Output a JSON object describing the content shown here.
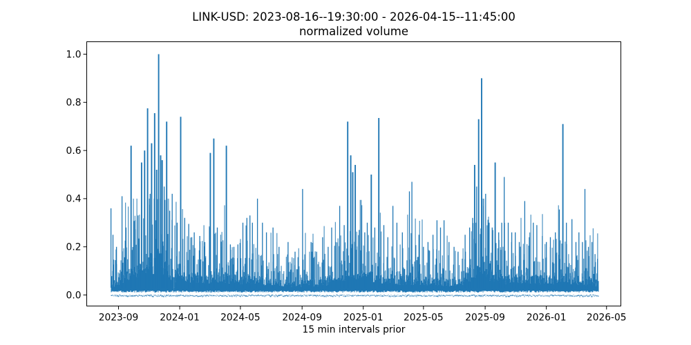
{
  "figure": {
    "title_line1": "LINK-USD: 2023-08-16--19:30:00 - 2026-04-15--11:45:00",
    "title_line2": "normalized volume",
    "xlabel": "15 min intervals prior",
    "background_color": "#ffffff",
    "text_color": "#000000"
  },
  "chart_data": {
    "type": "line",
    "title": "LINK-USD: 2023-08-16--19:30:00 - 2026-04-15--11:45:00",
    "subtitle": "normalized volume",
    "xlabel": "15 min intervals prior",
    "ylabel": "",
    "grid": false,
    "legend": null,
    "series_color": "#1f77b4",
    "x_start": "2023-08-16T19:30:00",
    "x_end": "2026-04-15T11:45:00",
    "x_tick_labels": [
      "2023-09",
      "2024-01",
      "2024-05",
      "2024-09",
      "2025-01",
      "2025-05",
      "2025-09",
      "2026-01",
      "2026-05"
    ],
    "y_ticks": [
      0.0,
      0.2,
      0.4,
      0.6,
      0.8,
      1.0
    ],
    "y_tick_labels": [
      "0.0",
      "0.2",
      "0.4",
      "0.6",
      "0.8",
      "1.0"
    ],
    "ylim": [
      0,
      1
    ],
    "axes_margin_fraction": 0.05,
    "description": "Dense 15-minute normalized trading volume; near-zero baseline band with frequent spikes. Major spikes listed as [date, normalized volume]; baseline_envelope gives typical top of the dense low-volume band.",
    "major_spikes": [
      [
        "2023-08-17",
        0.36
      ],
      [
        "2023-08-21",
        0.25
      ],
      [
        "2023-08-28",
        0.2
      ],
      [
        "2023-09-08",
        0.41
      ],
      [
        "2023-09-16",
        0.28
      ],
      [
        "2023-09-26",
        0.62
      ],
      [
        "2023-10-04",
        0.31
      ],
      [
        "2023-10-10",
        0.33
      ],
      [
        "2023-10-17",
        0.55
      ],
      [
        "2023-10-23",
        0.6
      ],
      [
        "2023-10-29",
        0.775
      ],
      [
        "2023-11-03",
        0.42
      ],
      [
        "2023-11-06",
        0.63
      ],
      [
        "2023-11-12",
        0.755
      ],
      [
        "2023-11-16",
        0.52
      ],
      [
        "2023-11-20",
        1.0
      ],
      [
        "2023-11-24",
        0.58
      ],
      [
        "2023-11-27",
        0.56
      ],
      [
        "2023-12-01",
        0.45
      ],
      [
        "2023-12-06",
        0.72
      ],
      [
        "2023-12-12",
        0.35
      ],
      [
        "2023-12-17",
        0.42
      ],
      [
        "2023-12-27",
        0.3
      ],
      [
        "2024-01-03",
        0.74
      ],
      [
        "2024-01-11",
        0.32
      ],
      [
        "2024-01-19",
        0.295
      ],
      [
        "2024-01-25",
        0.24
      ],
      [
        "2024-01-30",
        0.26
      ],
      [
        "2024-02-10",
        0.245
      ],
      [
        "2024-02-20",
        0.22
      ],
      [
        "2024-03-02",
        0.59
      ],
      [
        "2024-03-09",
        0.65
      ],
      [
        "2024-03-16",
        0.28
      ],
      [
        "2024-03-24",
        0.2
      ],
      [
        "2024-04-03",
        0.62
      ],
      [
        "2024-04-11",
        0.21
      ],
      [
        "2024-04-18",
        0.2
      ],
      [
        "2024-04-26",
        0.21
      ],
      [
        "2024-05-06",
        0.3
      ],
      [
        "2024-05-14",
        0.32
      ],
      [
        "2024-05-20",
        0.33
      ],
      [
        "2024-05-25",
        0.3
      ],
      [
        "2024-06-04",
        0.4
      ],
      [
        "2024-06-14",
        0.3
      ],
      [
        "2024-06-22",
        0.26
      ],
      [
        "2024-07-05",
        0.28
      ],
      [
        "2024-07-17",
        0.2
      ],
      [
        "2024-08-04",
        0.22
      ],
      [
        "2024-08-18",
        0.18
      ],
      [
        "2024-09-02",
        0.44
      ],
      [
        "2024-09-19",
        0.22
      ],
      [
        "2024-09-30",
        0.18
      ],
      [
        "2024-10-12",
        0.24
      ],
      [
        "2024-10-23",
        0.2
      ],
      [
        "2024-10-30",
        0.28
      ],
      [
        "2024-11-07",
        0.22
      ],
      [
        "2024-11-15",
        0.37
      ],
      [
        "2024-11-24",
        0.29
      ],
      [
        "2024-12-01",
        0.72
      ],
      [
        "2024-12-07",
        0.58
      ],
      [
        "2024-12-11",
        0.51
      ],
      [
        "2024-12-16",
        0.54
      ],
      [
        "2024-12-24",
        0.27
      ],
      [
        "2025-01-04",
        0.26
      ],
      [
        "2025-01-09",
        0.3
      ],
      [
        "2025-01-17",
        0.5
      ],
      [
        "2025-01-24",
        0.28
      ],
      [
        "2025-02-01",
        0.735
      ],
      [
        "2025-02-11",
        0.29
      ],
      [
        "2025-02-19",
        0.24
      ],
      [
        "2025-03-01",
        0.37
      ],
      [
        "2025-03-09",
        0.3
      ],
      [
        "2025-03-20",
        0.26
      ],
      [
        "2025-04-03",
        0.43
      ],
      [
        "2025-04-08",
        0.47
      ],
      [
        "2025-04-22",
        0.25
      ],
      [
        "2025-05-01",
        0.2
      ],
      [
        "2025-05-10",
        0.22
      ],
      [
        "2025-05-20",
        0.25
      ],
      [
        "2025-05-28",
        0.31
      ],
      [
        "2025-06-04",
        0.28
      ],
      [
        "2025-06-11",
        0.31
      ],
      [
        "2025-06-21",
        0.22
      ],
      [
        "2025-07-01",
        0.2
      ],
      [
        "2025-07-09",
        0.18
      ],
      [
        "2025-07-23",
        0.25
      ],
      [
        "2025-08-01",
        0.28
      ],
      [
        "2025-08-07",
        0.32
      ],
      [
        "2025-08-11",
        0.54
      ],
      [
        "2025-08-15",
        0.45
      ],
      [
        "2025-08-19",
        0.73
      ],
      [
        "2025-08-25",
        0.9
      ],
      [
        "2025-08-29",
        0.4
      ],
      [
        "2025-09-02",
        0.42
      ],
      [
        "2025-09-09",
        0.3
      ],
      [
        "2025-09-15",
        0.28
      ],
      [
        "2025-09-21",
        0.55
      ],
      [
        "2025-09-28",
        0.26
      ],
      [
        "2025-10-04",
        0.3
      ],
      [
        "2025-10-09",
        0.49
      ],
      [
        "2025-10-17",
        0.3
      ],
      [
        "2025-10-24",
        0.26
      ],
      [
        "2025-10-31",
        0.26
      ],
      [
        "2025-11-08",
        0.22
      ],
      [
        "2025-11-19",
        0.39
      ],
      [
        "2025-11-28",
        0.24
      ],
      [
        "2025-12-06",
        0.3
      ],
      [
        "2025-12-13",
        0.29
      ],
      [
        "2025-12-24",
        0.245
      ],
      [
        "2026-01-01",
        0.22
      ],
      [
        "2026-01-09",
        0.24
      ],
      [
        "2026-01-19",
        0.26
      ],
      [
        "2026-01-27",
        0.355
      ],
      [
        "2026-02-03",
        0.71
      ],
      [
        "2026-02-10",
        0.3
      ],
      [
        "2026-02-21",
        0.315
      ],
      [
        "2026-03-01",
        0.22
      ],
      [
        "2026-03-07",
        0.26
      ],
      [
        "2026-03-14",
        0.22
      ],
      [
        "2026-03-19",
        0.44
      ],
      [
        "2026-03-26",
        0.2
      ],
      [
        "2026-04-02",
        0.22
      ],
      [
        "2026-04-08",
        0.17
      ],
      [
        "2026-04-13",
        0.15
      ]
    ],
    "baseline_envelope": [
      [
        "2023-08-16",
        0.09
      ],
      [
        "2023-09-01",
        0.12
      ],
      [
        "2023-09-20",
        0.18
      ],
      [
        "2023-10-10",
        0.24
      ],
      [
        "2023-11-01",
        0.28
      ],
      [
        "2023-11-25",
        0.3
      ],
      [
        "2023-12-10",
        0.22
      ],
      [
        "2023-12-18",
        0.2
      ],
      [
        "2023-12-20",
        0.015
      ],
      [
        "2023-12-22",
        0.18
      ],
      [
        "2024-01-15",
        0.17
      ],
      [
        "2024-02-15",
        0.15
      ],
      [
        "2024-03-10",
        0.17
      ],
      [
        "2024-04-10",
        0.15
      ],
      [
        "2024-05-10",
        0.14
      ],
      [
        "2024-06-10",
        0.14
      ],
      [
        "2024-07-10",
        0.11
      ],
      [
        "2024-08-10",
        0.11
      ],
      [
        "2024-09-10",
        0.12
      ],
      [
        "2024-10-10",
        0.12
      ],
      [
        "2024-11-10",
        0.15
      ],
      [
        "2024-12-01",
        0.2
      ],
      [
        "2024-12-25",
        0.19
      ],
      [
        "2025-01-20",
        0.17
      ],
      [
        "2025-02-15",
        0.14
      ],
      [
        "2025-03-15",
        0.14
      ],
      [
        "2025-04-15",
        0.14
      ],
      [
        "2025-05-15",
        0.13
      ],
      [
        "2025-06-15",
        0.12
      ],
      [
        "2025-07-15",
        0.12
      ],
      [
        "2025-08-05",
        0.2
      ],
      [
        "2025-08-25",
        0.28
      ],
      [
        "2025-09-10",
        0.2
      ],
      [
        "2025-10-01",
        0.16
      ],
      [
        "2025-11-01",
        0.14
      ],
      [
        "2025-12-01",
        0.15
      ],
      [
        "2026-01-01",
        0.14
      ],
      [
        "2026-02-01",
        0.16
      ],
      [
        "2026-03-01",
        0.13
      ],
      [
        "2026-04-01",
        0.12
      ],
      [
        "2026-04-15",
        0.11
      ]
    ]
  }
}
